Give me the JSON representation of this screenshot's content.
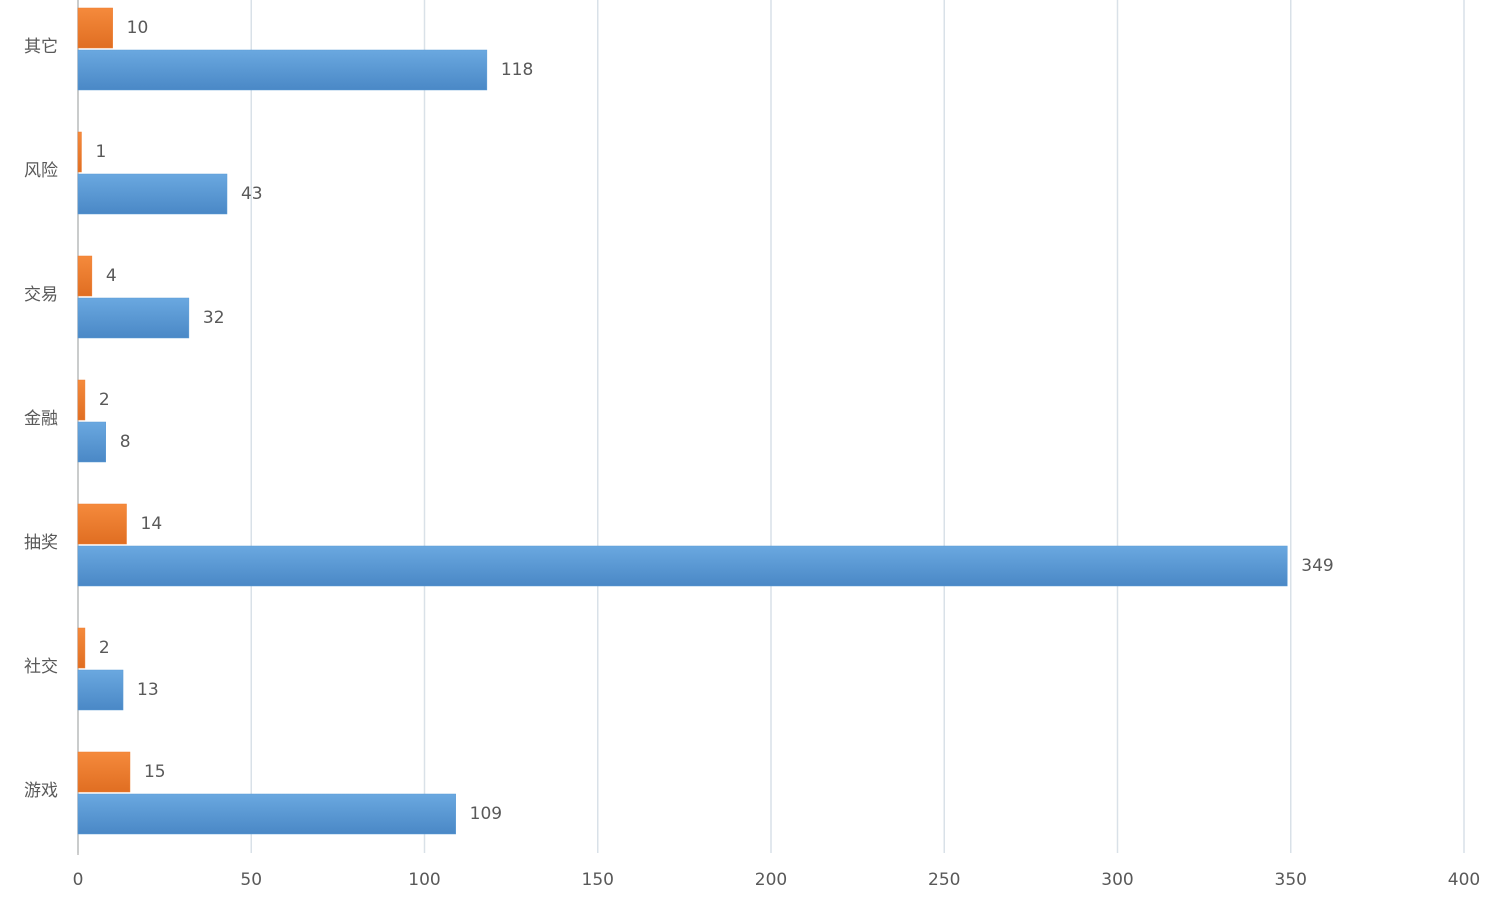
{
  "chart_data": {
    "type": "hbar",
    "categories": [
      "其它",
      "风险",
      "交易",
      "金融",
      "抽奖",
      "社交",
      "游戏"
    ],
    "series": [
      {
        "color": "#ed7d31",
        "values": [
          10,
          1,
          4,
          2,
          14,
          2,
          15
        ]
      },
      {
        "color": "#5b9bd5",
        "values": [
          118,
          43,
          32,
          8,
          349,
          13,
          109
        ]
      }
    ],
    "xlim": [
      0,
      400
    ],
    "xticks": [
      0,
      50,
      100,
      150,
      200,
      250,
      300,
      350,
      400
    ],
    "grid": true
  }
}
